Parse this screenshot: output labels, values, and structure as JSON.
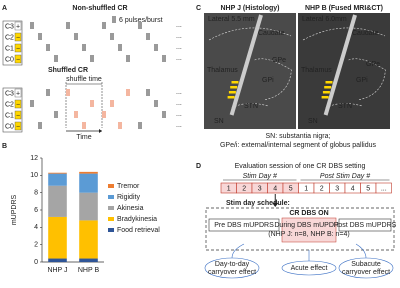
{
  "panel_a": {
    "letter": "A",
    "title": "Non-shuffled CR",
    "legend": "6 pulses/burst",
    "channels": [
      "C3",
      "C2",
      "C1",
      "C0"
    ],
    "plus": "+",
    "minus": "−",
    "ellipsis": "...",
    "shuffled_title": "Shuffled CR",
    "shuffle_time": "shuffle time",
    "time": "Time"
  },
  "chart_data": {
    "type": "bar",
    "stacked": true,
    "panel_label": "B",
    "ylabel": "mUPDRS",
    "categories": [
      "NHP J",
      "NHP B"
    ],
    "series": [
      {
        "name": "Food retrieval",
        "color": "#2f5597",
        "values": [
          0.4,
          0.4
        ]
      },
      {
        "name": "Bradykinesia",
        "color": "#ffc000",
        "values": [
          4.8,
          4.4
        ]
      },
      {
        "name": "Akinesia",
        "color": "#a5a5a5",
        "values": [
          3.6,
          3.2
        ]
      },
      {
        "name": "Rigidity",
        "color": "#5b9bd5",
        "values": [
          1.4,
          2.2
        ]
      },
      {
        "name": "Tremor",
        "color": "#ed7d31",
        "values": [
          0.1,
          0.2
        ]
      }
    ],
    "ylim": [
      0,
      12
    ],
    "yticks": [
      0,
      2,
      4,
      6,
      8,
      10,
      12
    ],
    "grid": false
  },
  "panel_c": {
    "letter": "C",
    "left_title": "NHP J (Histology)",
    "right_title": "NHP B (Fused MRI&CT)",
    "left_lateral": "Lateral 5.5 mm",
    "right_lateral": "Lateral 6.0mm",
    "caudate": "Caudate",
    "thalamus": "Thalamus",
    "gpe": "GPe",
    "gpi": "GPi",
    "stn": "STN",
    "sn": "SN",
    "caption": [
      "SN: substantia nigra;",
      "GPe/i: external/internal segment of globus pallidus"
    ]
  },
  "panel_d": {
    "letter": "D",
    "title": "Evaluation session of one CR DBS setting",
    "stim_day": "Stim Day #",
    "post_stim_day": "Post Stim Day #",
    "days": [
      "1",
      "2",
      "3",
      "4",
      "5",
      "1",
      "2",
      "3",
      "4",
      "5",
      "..."
    ],
    "schedule": "Stim day schedule:",
    "cr_on": "CR DBS ON",
    "pre": "Pre DBS mUPDRS",
    "during": [
      "During DBS mUPDRS",
      "(NHP J: n=8, NHP B: n=4)"
    ],
    "post": "Post DBS mUPDRS",
    "day_to_day": [
      "Day-to-day",
      "carryover effect"
    ],
    "acute": "Acute effect",
    "subacute": [
      "Subacute",
      "carryover effect"
    ]
  }
}
